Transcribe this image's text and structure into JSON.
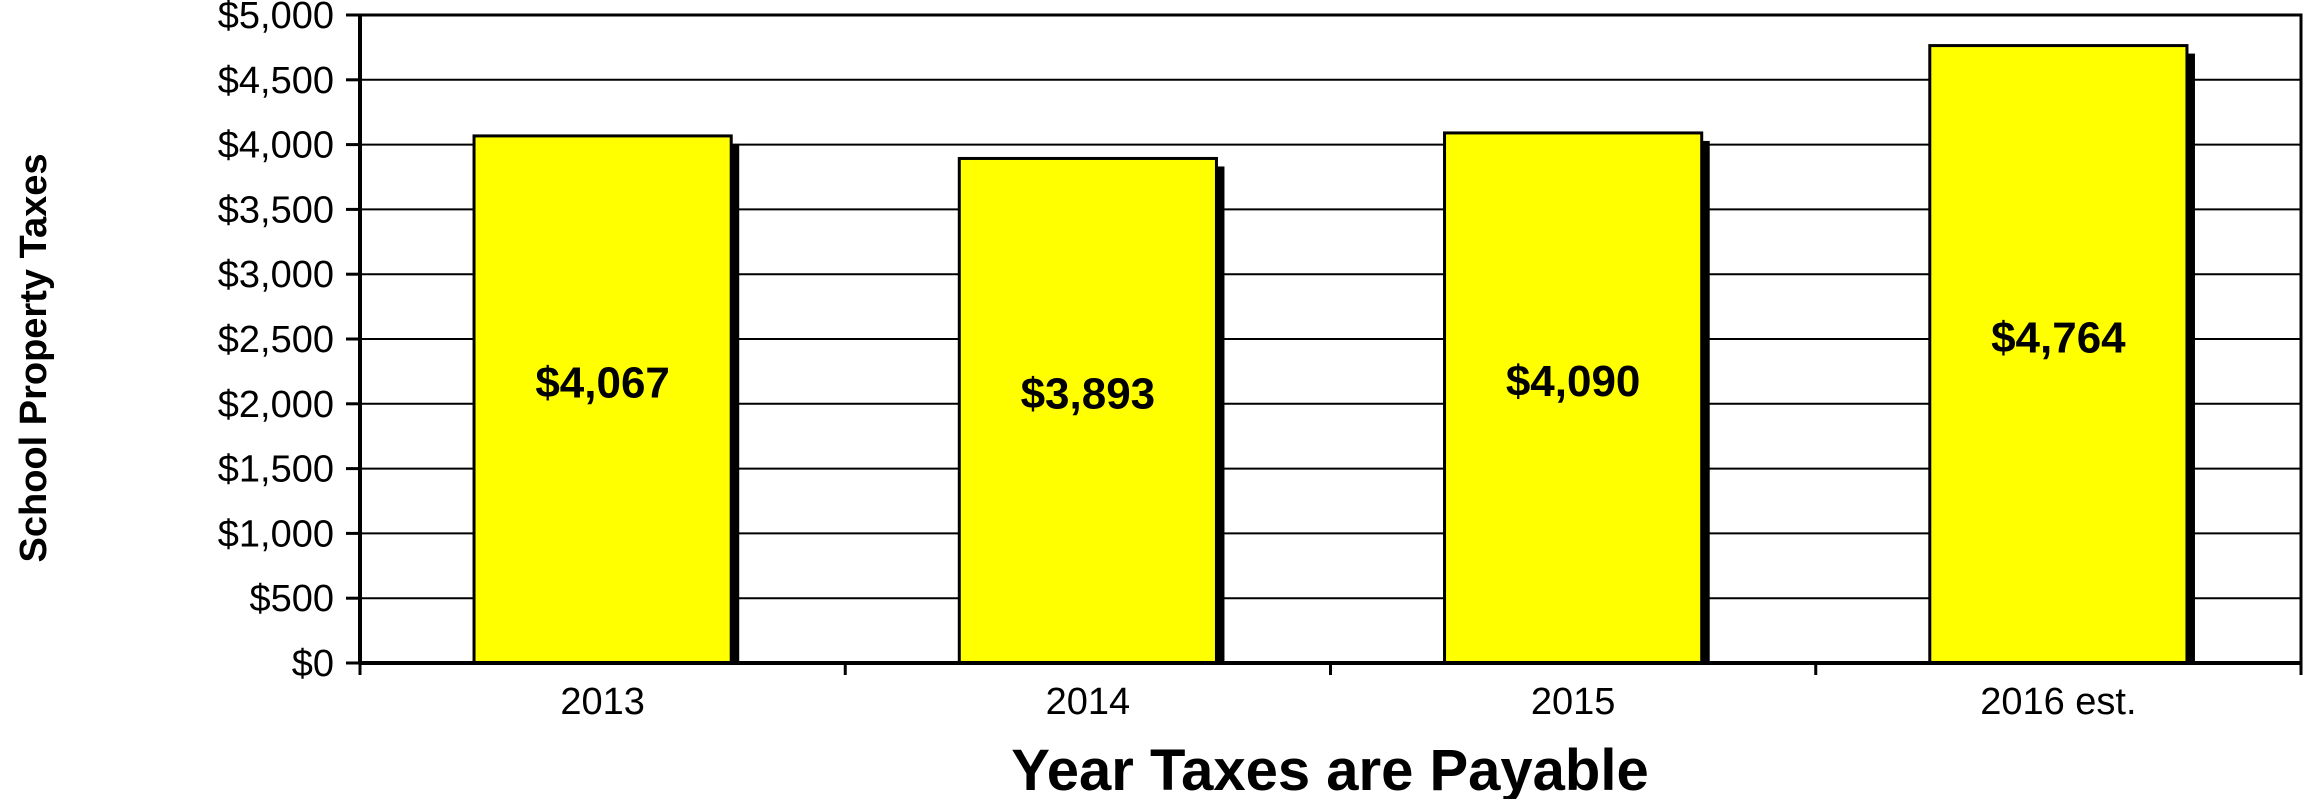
{
  "chart_data": {
    "type": "bar",
    "categories": [
      "2013",
      "2014",
      "2015",
      "2016 est."
    ],
    "values": [
      4067,
      3893,
      4090,
      4764
    ],
    "data_labels": [
      "$4,067",
      "$3,893",
      "$4,090",
      "$4,764"
    ],
    "title": "",
    "xlabel": "Year Taxes are Payable",
    "ylabel": "School Property Taxes",
    "ylim": [
      0,
      5000
    ],
    "y_ticks": [
      0,
      500,
      1000,
      1500,
      2000,
      2500,
      3000,
      3500,
      4000,
      4500,
      5000
    ],
    "y_tick_labels": [
      "$0",
      "$500",
      "$1,000",
      "$1,500",
      "$2,000",
      "$2,500",
      "$3,000",
      "$3,500",
      "$4,000",
      "$4,500",
      "$5,000"
    ],
    "grid": true,
    "legend": "none",
    "colors": {
      "bar_fill": "#FFFF00",
      "bar_stroke": "#000000",
      "bar_shadow": "#000000",
      "grid": "#000000",
      "text": "#000000"
    }
  }
}
